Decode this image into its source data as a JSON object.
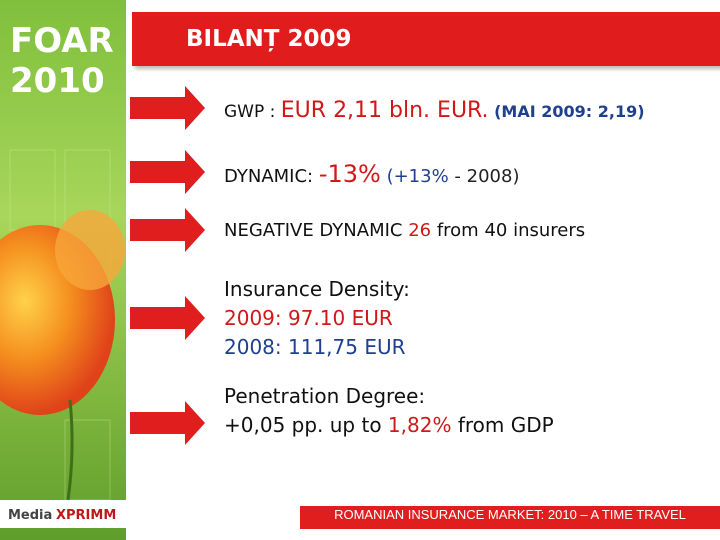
{
  "header": {
    "title": "BILANȚ 2009"
  },
  "logo": {
    "name": "FOAR",
    "year": "2010"
  },
  "brand": {
    "first": "Media",
    "second": "XPRIMM"
  },
  "items": [
    [
      [
        {
          "text": "GWP : ",
          "color": "#111111"
        },
        {
          "text": "EUR 2,11 bln. EUR.",
          "color": "#d01818"
        },
        {
          "text": " (MAI 2009: 2,19)",
          "color": "#1f3f8f"
        }
      ]
    ],
    [
      [
        {
          "text": "DYNAMIC: ",
          "color": "#111111"
        },
        {
          "text": "-13%",
          "color": "#d01818"
        },
        {
          "text": " (+13%",
          "color": "#1f3f8f"
        },
        {
          "text": " - 2008)",
          "color": "#222222"
        }
      ]
    ],
    [
      [
        {
          "text": "NEGATIVE DYNAMIC ",
          "color": "#111111"
        },
        {
          "text": "26",
          "color": "#d01818"
        },
        {
          "text": " from 40 insurers",
          "color": "#111111"
        }
      ]
    ],
    [
      [
        {
          "text": "Insurance Density:",
          "color": "#111111"
        }
      ],
      [
        {
          "text": "2009: 97.10 EUR",
          "color": "#d01818"
        }
      ],
      [
        {
          "text": "2008: 111,75 EUR",
          "color": "#1f3f8f"
        }
      ]
    ],
    [
      [
        {
          "text": "Penetration Degree:",
          "color": "#111111"
        }
      ],
      [
        {
          "text": "+0,05 pp. up to ",
          "color": "#111111"
        },
        {
          "text": "1,82%",
          "color": "#d01818"
        },
        {
          "text": " from GDP",
          "color": "#111111"
        }
      ]
    ]
  ],
  "footer": {
    "text": "ROMANIAN INSURANCE MARKET: 2010 – A TIME TRAVEL"
  }
}
